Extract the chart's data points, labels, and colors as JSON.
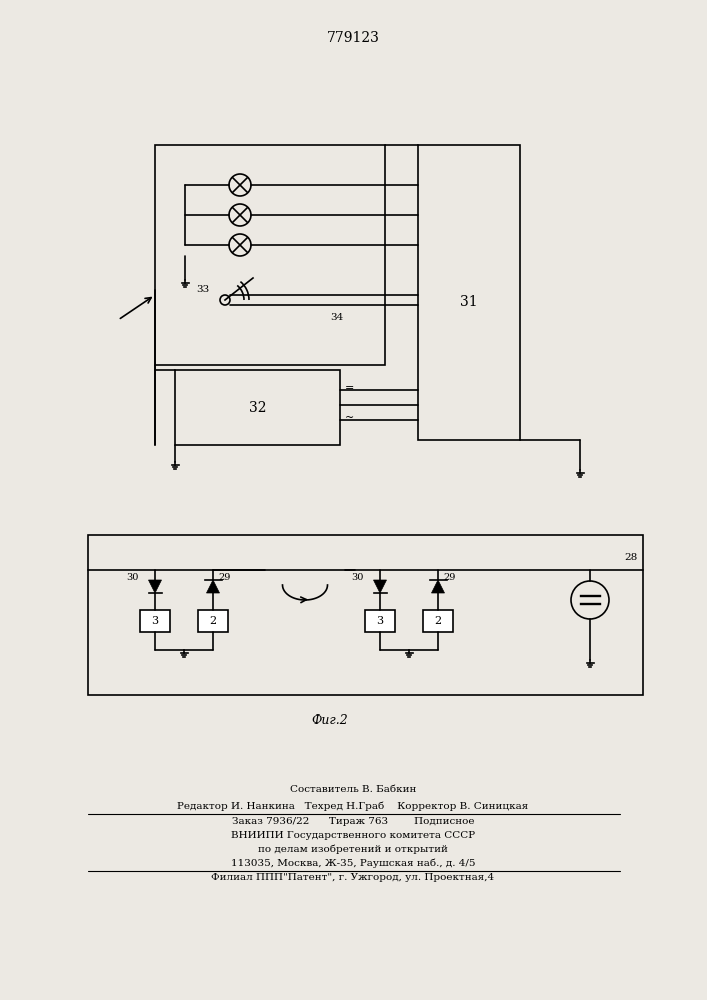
{
  "title": "779123",
  "title_fontsize": 10,
  "background_color": "#ece9e3",
  "footer_lines": [
    "Составитель В. Бабкин",
    "Редактор И. Нанкина   Техред Н.Граб    Корректор В. Синицкая",
    "Заказ 7936/22      Тираж 763        Подписное",
    "ВНИИПИ Государственного комитета СССР",
    "по делам изобретений и открытий",
    "113035, Москва, Ж-35, Раушская наб., д. 4/5",
    "Филиал ППП\"Патент\", г. Ужгород, ул. Проектная,4"
  ]
}
